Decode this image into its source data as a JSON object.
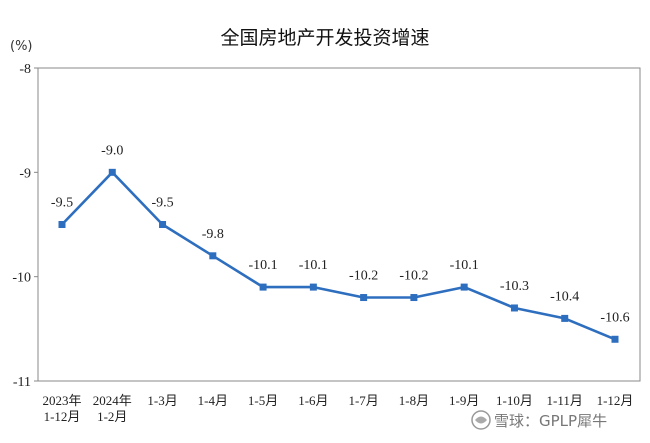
{
  "chart_data": {
    "type": "line",
    "title": "全国房地产开发投资增速",
    "y_unit": "(%)",
    "ylim": [
      -11,
      -8
    ],
    "yticks": [
      -8,
      -9,
      -10,
      -11
    ],
    "grid": false,
    "categories": [
      [
        "2023年",
        "1-12月"
      ],
      [
        "2024年",
        "1-2月"
      ],
      [
        "1-3月"
      ],
      [
        "1-4月"
      ],
      [
        "1-5月"
      ],
      [
        "1-6月"
      ],
      [
        "1-7月"
      ],
      [
        "1-8月"
      ],
      [
        "1-9月"
      ],
      [
        "1-10月"
      ],
      [
        "1-11月"
      ],
      [
        "1-12月"
      ]
    ],
    "values": [
      -9.5,
      -9.0,
      -9.5,
      -9.8,
      -10.1,
      -10.1,
      -10.2,
      -10.2,
      -10.1,
      -10.3,
      -10.4,
      -10.6
    ],
    "data_labels": [
      "-9.5",
      "-9.0",
      "-9.5",
      "-9.8",
      "-10.1",
      "-10.1",
      "-10.2",
      "-10.2",
      "-10.1",
      "-10.3",
      "-10.4",
      "-10.6"
    ],
    "line_color": "#2e6ebf"
  },
  "watermark": {
    "icon": "snowball-logo-icon",
    "text": "雪球：GPLP犀牛"
  }
}
